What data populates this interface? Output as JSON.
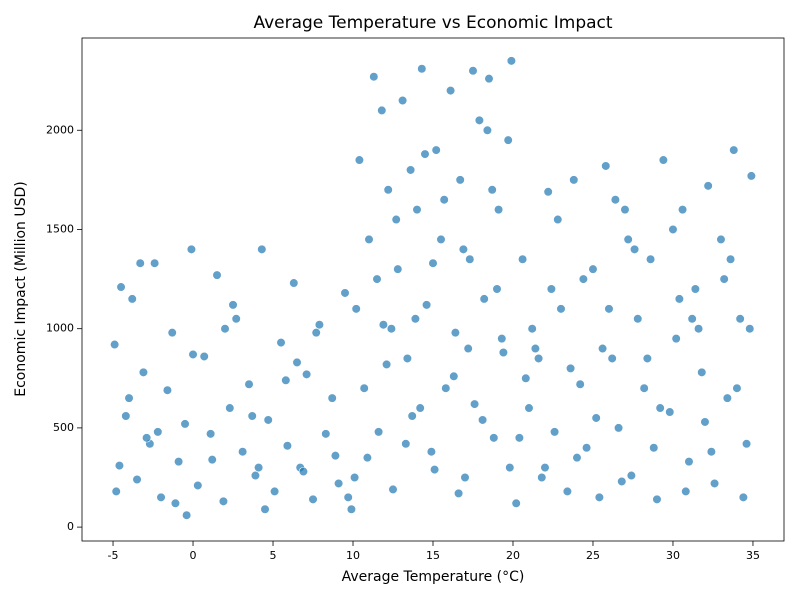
{
  "chart_data": {
    "type": "scatter",
    "title": "Average Temperature vs Economic Impact",
    "x_label": "Average Temperature (°C)",
    "y_label": "Economic Impact (Million USD)",
    "color": "#1f77b4",
    "xlim": [
      -6.94,
      36.94
    ],
    "ylim": [
      -70,
      2465
    ],
    "xticks": [
      -5,
      0,
      5,
      10,
      15,
      20,
      25,
      30,
      35
    ],
    "yticks": [
      0,
      500,
      1000,
      1500,
      2000
    ],
    "x": [
      -4.9,
      -4.6,
      -4.2,
      -3.8,
      -3.5,
      -3.1,
      -2.7,
      -2.4,
      -2.0,
      -1.6,
      -1.3,
      -0.9,
      -0.5,
      -0.1,
      0.3,
      0.7,
      1.1,
      1.5,
      1.9,
      2.3,
      2.7,
      3.1,
      3.5,
      3.9,
      4.3,
      4.7,
      5.1,
      5.5,
      5.9,
      6.3,
      6.7,
      7.1,
      7.5,
      7.9,
      8.3,
      8.7,
      9.1,
      9.5,
      9.9,
      -4.8,
      -4.0,
      -3.3,
      -2.2,
      -1.1,
      0.0,
      1.2,
      2.5,
      3.7,
      4.5,
      5.8,
      6.9,
      7.7,
      8.9,
      9.7,
      -4.5,
      -2.9,
      -0.4,
      2.0,
      4.1,
      6.5,
      10.1,
      10.4,
      10.7,
      11.0,
      11.3,
      11.6,
      11.9,
      12.2,
      12.5,
      12.8,
      13.1,
      13.4,
      13.7,
      14.0,
      14.3,
      14.6,
      14.9,
      15.2,
      15.5,
      15.8,
      16.1,
      16.4,
      16.7,
      17.0,
      17.3,
      17.6,
      17.9,
      18.2,
      18.5,
      18.8,
      19.1,
      19.4,
      19.7,
      19.9,
      10.2,
      10.9,
      11.5,
      12.1,
      12.7,
      13.3,
      13.9,
      14.5,
      15.1,
      15.7,
      16.3,
      16.9,
      17.5,
      18.1,
      18.7,
      19.3,
      19.8,
      11.8,
      13.6,
      14.2,
      15.0,
      16.6,
      17.2,
      18.4,
      19.0,
      12.4,
      20.2,
      20.6,
      21.0,
      21.4,
      21.8,
      22.2,
      22.6,
      23.0,
      23.4,
      23.8,
      24.2,
      24.6,
      25.0,
      25.4,
      25.8,
      26.2,
      26.6,
      27.0,
      27.4,
      27.8,
      28.2,
      28.6,
      29.0,
      29.4,
      29.8,
      30.2,
      30.6,
      31.0,
      31.4,
      31.8,
      32.2,
      32.6,
      33.0,
      33.4,
      33.8,
      34.2,
      34.6,
      34.9,
      20.4,
      21.2,
      22.0,
      22.8,
      23.6,
      24.4,
      25.2,
      26.0,
      26.8,
      27.6,
      28.4,
      29.2,
      30.0,
      30.8,
      31.6,
      32.4,
      33.2,
      34.0,
      34.8,
      20.8,
      22.4,
      24.0,
      25.6,
      27.2,
      28.8,
      30.4,
      32.0,
      33.6,
      34.4,
      21.6,
      26.4,
      31.2
    ],
    "values": [
      920,
      310,
      560,
      1150,
      240,
      780,
      420,
      1330,
      150,
      690,
      980,
      330,
      520,
      1400,
      210,
      860,
      470,
      1270,
      130,
      600,
      1050,
      380,
      720,
      260,
      1400,
      540,
      180,
      930,
      410,
      1230,
      300,
      770,
      140,
      1020,
      470,
      650,
      220,
      1180,
      90,
      180,
      650,
      1330,
      480,
      120,
      870,
      340,
      1120,
      560,
      90,
      740,
      280,
      980,
      360,
      150,
      1210,
      450,
      60,
      1000,
      300,
      830,
      250,
      1850,
      700,
      1450,
      2270,
      480,
      1020,
      1700,
      190,
      1300,
      2150,
      850,
      560,
      1600,
      2310,
      1120,
      380,
      1900,
      1450,
      700,
      2200,
      980,
      1750,
      250,
      1350,
      620,
      2050,
      1150,
      2260,
      450,
      1600,
      880,
      1950,
      2350,
      1100,
      350,
      1250,
      820,
      1550,
      420,
      1050,
      1880,
      290,
      1650,
      760,
      1400,
      2300,
      540,
      1700,
      950,
      300,
      2100,
      1800,
      600,
      1330,
      170,
      900,
      2000,
      1200,
      1000,
      120,
      1350,
      600,
      900,
      250,
      1690,
      480,
      1100,
      180,
      1750,
      720,
      400,
      1300,
      150,
      1820,
      850,
      500,
      1600,
      260,
      1050,
      700,
      1350,
      140,
      1850,
      580,
      950,
      1600,
      330,
      1200,
      780,
      1720,
      220,
      1450,
      650,
      1900,
      1050,
      420,
      1770,
      450,
      1000,
      300,
      1550,
      800,
      1250,
      550,
      1100,
      230,
      1400,
      850,
      600,
      1500,
      180,
      1000,
      380,
      1250,
      700,
      1000,
      750,
      1200,
      350,
      900,
      1450,
      400,
      1150,
      530,
      1350,
      150,
      850,
      1650,
      1050
    ]
  }
}
